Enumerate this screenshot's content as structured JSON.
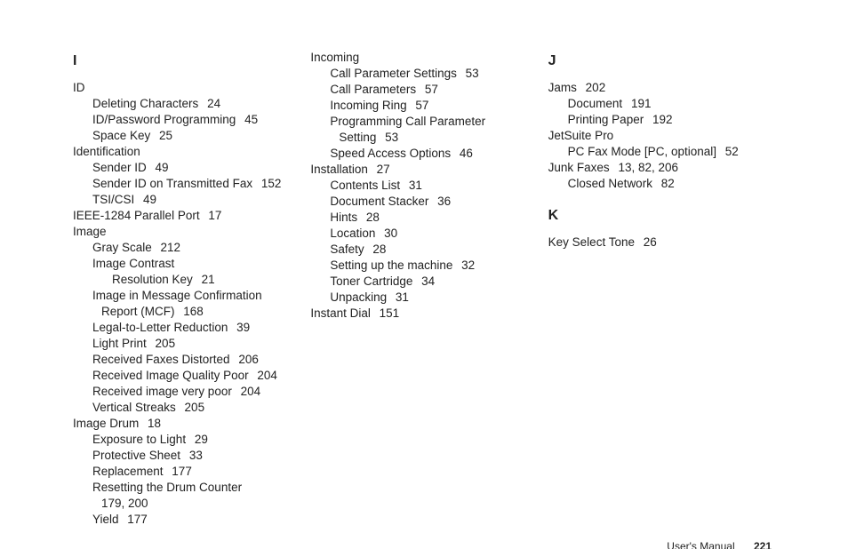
{
  "footer": {
    "label": "User's Manual",
    "page": "221"
  },
  "columns": [
    {
      "blocks": [
        {
          "type": "section",
          "letter": "I"
        },
        {
          "type": "entries",
          "items": [
            {
              "level": 0,
              "text": "ID"
            },
            {
              "level": 1,
              "text": "Deleting Characters",
              "pages": "24"
            },
            {
              "level": 1,
              "text": "ID/Password Programming",
              "pages": "45"
            },
            {
              "level": 1,
              "text": "Space Key",
              "pages": "25"
            },
            {
              "level": 0,
              "text": "Identification"
            },
            {
              "level": 1,
              "text": "Sender ID",
              "pages": "49"
            },
            {
              "level": 1,
              "text": "Sender ID on Transmitted Fax",
              "pages": "152"
            },
            {
              "level": 1,
              "text": "TSI/CSI",
              "pages": "49"
            },
            {
              "level": 0,
              "text": "IEEE-1284 Parallel Port",
              "pages": "17"
            },
            {
              "level": 0,
              "text": "Image"
            },
            {
              "level": 1,
              "text": "Gray Scale",
              "pages": "212"
            },
            {
              "level": 1,
              "text": "Image Contrast"
            },
            {
              "level": 2,
              "text": "Resolution Key",
              "pages": "21"
            },
            {
              "level": 1,
              "text": "Image in Message Confirmation"
            },
            {
              "level": 1,
              "cont": true,
              "text": "Report (MCF)",
              "pages": "168"
            },
            {
              "level": 1,
              "text": "Legal-to-Letter Reduction",
              "pages": "39"
            },
            {
              "level": 1,
              "text": "Light Print",
              "pages": "205"
            },
            {
              "level": 1,
              "text": "Received Faxes Distorted",
              "pages": "206"
            },
            {
              "level": 1,
              "text": "Received Image Quality Poor",
              "pages": "204"
            },
            {
              "level": 1,
              "text": "Received image very poor",
              "pages": "204"
            },
            {
              "level": 1,
              "text": "Vertical Streaks",
              "pages": "205"
            },
            {
              "level": 0,
              "text": "Image Drum",
              "pages": "18"
            },
            {
              "level": 1,
              "text": "Exposure to Light",
              "pages": "29"
            },
            {
              "level": 1,
              "text": "Protective Sheet",
              "pages": "33"
            },
            {
              "level": 1,
              "text": "Replacement",
              "pages": "177"
            },
            {
              "level": 1,
              "text": "Resetting the Drum Counter"
            },
            {
              "level": 1,
              "cont": true,
              "text": "179, 200"
            },
            {
              "level": 1,
              "text": "Yield",
              "pages": "177"
            }
          ]
        }
      ]
    },
    {
      "blocks": [
        {
          "type": "entries",
          "items": [
            {
              "level": 0,
              "text": "Incoming"
            },
            {
              "level": 1,
              "text": "Call Parameter Settings",
              "pages": "53"
            },
            {
              "level": 1,
              "text": "Call Parameters",
              "pages": "57"
            },
            {
              "level": 1,
              "text": "Incoming Ring",
              "pages": "57"
            },
            {
              "level": 1,
              "text": "Programming Call Parameter"
            },
            {
              "level": 1,
              "cont": true,
              "text": "Setting",
              "pages": "53"
            },
            {
              "level": 1,
              "text": "Speed Access Options",
              "pages": "46"
            },
            {
              "level": 0,
              "text": "Installation",
              "pages": "27"
            },
            {
              "level": 1,
              "text": "Contents List",
              "pages": "31"
            },
            {
              "level": 1,
              "text": "Document Stacker",
              "pages": "36"
            },
            {
              "level": 1,
              "text": "Hints",
              "pages": "28"
            },
            {
              "level": 1,
              "text": "Location",
              "pages": "30"
            },
            {
              "level": 1,
              "text": "Safety",
              "pages": "28"
            },
            {
              "level": 1,
              "text": "Setting up the machine",
              "pages": "32"
            },
            {
              "level": 1,
              "text": "Toner Cartridge",
              "pages": "34"
            },
            {
              "level": 1,
              "text": "Unpacking",
              "pages": "31"
            },
            {
              "level": 0,
              "text": "Instant Dial",
              "pages": "151"
            }
          ]
        }
      ]
    },
    {
      "blocks": [
        {
          "type": "section",
          "letter": "J"
        },
        {
          "type": "entries",
          "items": [
            {
              "level": 0,
              "text": "Jams",
              "pages": "202"
            },
            {
              "level": 1,
              "text": "Document",
              "pages": "191"
            },
            {
              "level": 1,
              "text": "Printing Paper",
              "pages": "192"
            },
            {
              "level": 0,
              "text": "JetSuite Pro"
            },
            {
              "level": 1,
              "text": "PC Fax Mode [PC, optional]",
              "pages": "52"
            },
            {
              "level": 0,
              "text": "Junk Faxes",
              "pages": "13, 82, 206"
            },
            {
              "level": 1,
              "text": "Closed Network",
              "pages": "82"
            }
          ]
        },
        {
          "type": "section",
          "letter": "K",
          "gapBefore": true
        },
        {
          "type": "entries",
          "items": [
            {
              "level": 0,
              "text": "Key Select Tone",
              "pages": "26"
            }
          ]
        }
      ]
    }
  ]
}
